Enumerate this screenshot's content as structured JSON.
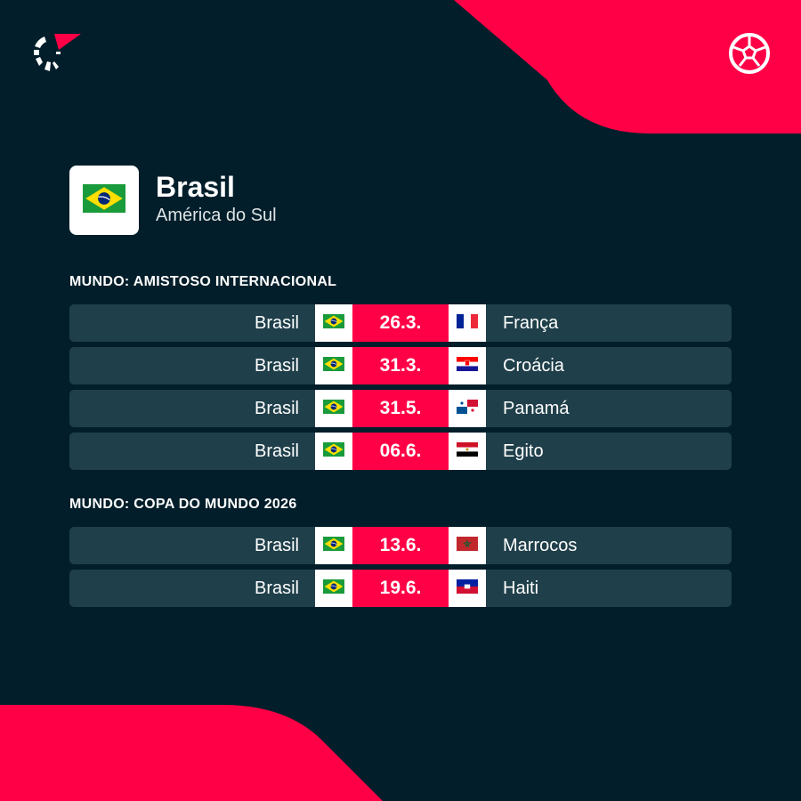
{
  "header": {
    "logo": "flashscore-logo",
    "sport_icon": "soccer-ball-icon"
  },
  "team": {
    "name": "Brasil",
    "region": "América do Sul",
    "flag": "br"
  },
  "colors": {
    "background": "#011e2a",
    "accent": "#ff0046",
    "row": "#1f3f4a"
  },
  "sections": [
    {
      "title": "MUNDO: AMISTOSO INTERNACIONAL",
      "matches": [
        {
          "home": "Brasil",
          "home_flag": "br",
          "date": "26.3.",
          "away": "França",
          "away_flag": "fr"
        },
        {
          "home": "Brasil",
          "home_flag": "br",
          "date": "31.3.",
          "away": "Croácia",
          "away_flag": "hr"
        },
        {
          "home": "Brasil",
          "home_flag": "br",
          "date": "31.5.",
          "away": "Panamá",
          "away_flag": "pa"
        },
        {
          "home": "Brasil",
          "home_flag": "br",
          "date": "06.6.",
          "away": "Egito",
          "away_flag": "eg"
        }
      ]
    },
    {
      "title": "MUNDO: COPA DO MUNDO 2026",
      "matches": [
        {
          "home": "Brasil",
          "home_flag": "br",
          "date": "13.6.",
          "away": "Marrocos",
          "away_flag": "ma"
        },
        {
          "home": "Brasil",
          "home_flag": "br",
          "date": "19.6.",
          "away": "Haiti",
          "away_flag": "ht"
        }
      ]
    }
  ]
}
